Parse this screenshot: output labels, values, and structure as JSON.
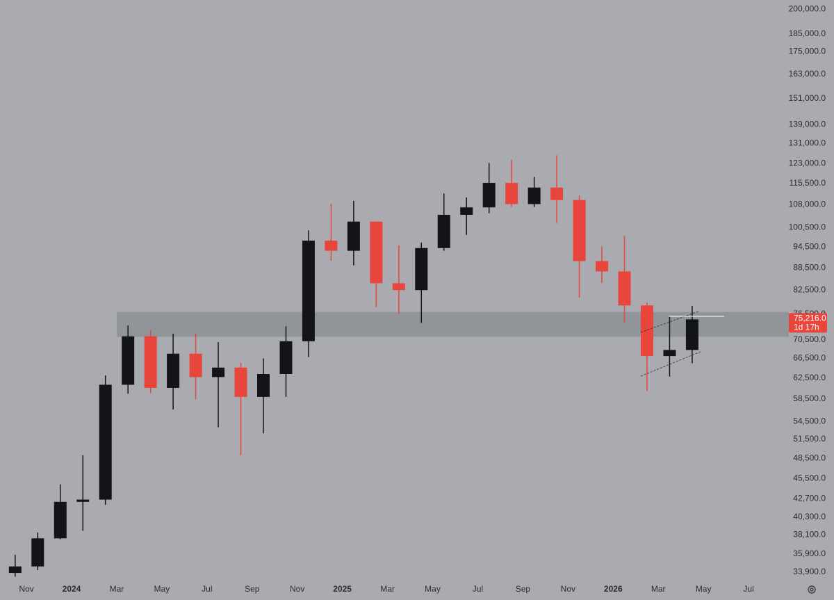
{
  "chart_data": {
    "type": "candlestick",
    "log_scale": true,
    "background": "#a9abb1",
    "up_color": "#131417",
    "down_color": "#e8453c",
    "x": [
      "2023-10",
      "2023-11",
      "2023-12",
      "2024-01",
      "2024-02",
      "2024-03",
      "2024-04",
      "2024-05",
      "2024-06",
      "2024-07",
      "2024-08",
      "2024-09",
      "2024-10",
      "2024-11",
      "2024-12",
      "2025-01",
      "2025-02",
      "2025-03",
      "2025-04",
      "2025-05",
      "2025-06",
      "2025-07",
      "2025-08",
      "2025-09",
      "2025-10",
      "2025-11",
      "2025-12",
      "2026-01",
      "2026-02",
      "2026-03",
      "2026-04"
    ],
    "open": [
      33800,
      34500,
      37700,
      42300,
      42600,
      61200,
      71300,
      60600,
      67500,
      62700,
      64600,
      58900,
      63300,
      70200,
      96400,
      93400,
      102400,
      84300,
      82500,
      94200,
      104600,
      107100,
      115700,
      108200,
      114000,
      109600,
      90400,
      87500,
      78600,
      67000,
      68300
    ],
    "high": [
      35800,
      38400,
      44700,
      49000,
      63000,
      73800,
      72700,
      71900,
      71900,
      70000,
      65600,
      66500,
      73600,
      99600,
      108300,
      109300,
      102500,
      95000,
      95800,
      111900,
      110500,
      123200,
      124400,
      117900,
      126200,
      111200,
      94600,
      97900,
      79300,
      76000,
      78500
    ],
    "low": [
      33400,
      34100,
      37600,
      38600,
      41900,
      59500,
      59600,
      56600,
      58500,
      53500,
      49000,
      52500,
      58900,
      66800,
      90500,
      89200,
      78200,
      76600,
      74400,
      93400,
      98200,
      105100,
      107300,
      107200,
      102000,
      80500,
      84400,
      74500,
      60000,
      62800,
      65500
    ],
    "close": [
      34500,
      37700,
      42300,
      42600,
      61200,
      71300,
      60600,
      67500,
      62700,
      64600,
      58900,
      63300,
      70200,
      96400,
      93400,
      102400,
      84300,
      82500,
      94200,
      104600,
      107100,
      115700,
      108200,
      114000,
      109600,
      90400,
      87500,
      78600,
      67000,
      68300,
      75216
    ],
    "ylim": [
      33000,
      206000
    ],
    "yticks": [
      {
        "value": 200000,
        "label": "200,000.0"
      },
      {
        "value": 185000,
        "label": "185,000.0"
      },
      {
        "value": 175000,
        "label": "175,000.0"
      },
      {
        "value": 163000,
        "label": "163,000.0"
      },
      {
        "value": 151000,
        "label": "151,000.0"
      },
      {
        "value": 139000,
        "label": "139,000.0"
      },
      {
        "value": 131000,
        "label": "131,000.0"
      },
      {
        "value": 123000,
        "label": "123,000.0"
      },
      {
        "value": 115500,
        "label": "115,500.0"
      },
      {
        "value": 108000,
        "label": "108,000.0"
      },
      {
        "value": 100500,
        "label": "100,500.0"
      },
      {
        "value": 94500,
        "label": "94,500.0"
      },
      {
        "value": 88500,
        "label": "88,500.0"
      },
      {
        "value": 82500,
        "label": "82,500.0"
      },
      {
        "value": 76500,
        "label": "76,500.0"
      },
      {
        "value": 70500,
        "label": "70,500.0"
      },
      {
        "value": 66500,
        "label": "66,500.0"
      },
      {
        "value": 62500,
        "label": "62,500.0"
      },
      {
        "value": 58500,
        "label": "58,500.0"
      },
      {
        "value": 54500,
        "label": "54,500.0"
      },
      {
        "value": 51500,
        "label": "51,500.0"
      },
      {
        "value": 48500,
        "label": "48,500.0"
      },
      {
        "value": 45500,
        "label": "45,500.0"
      },
      {
        "value": 42700,
        "label": "42,700.0"
      },
      {
        "value": 40300,
        "label": "40,300.0"
      },
      {
        "value": 38100,
        "label": "38,100.0"
      },
      {
        "value": 35900,
        "label": "35,900.0"
      },
      {
        "value": 33900,
        "label": "33,900.0"
      }
    ],
    "xticks": [
      {
        "value": "2023-11",
        "label": "Nov"
      },
      {
        "value": "2024-01",
        "label": "2024"
      },
      {
        "value": "2024-03",
        "label": "Mar"
      },
      {
        "value": "2024-05",
        "label": "May"
      },
      {
        "value": "2024-07",
        "label": "Jul"
      },
      {
        "value": "2024-09",
        "label": "Sep"
      },
      {
        "value": "2024-11",
        "label": "Nov"
      },
      {
        "value": "2025-01",
        "label": "2025"
      },
      {
        "value": "2025-03",
        "label": "Mar"
      },
      {
        "value": "2025-05",
        "label": "May"
      },
      {
        "value": "2025-07",
        "label": "Jul"
      },
      {
        "value": "2025-09",
        "label": "Sep"
      },
      {
        "value": "2025-11",
        "label": "Nov"
      },
      {
        "value": "2026-01",
        "label": "2026"
      },
      {
        "value": "2026-03",
        "label": "Mar"
      },
      {
        "value": "2026-05",
        "label": "May"
      },
      {
        "value": "2026-07",
        "label": "Jul"
      }
    ],
    "zone": {
      "from": "2024-03",
      "top": 77000,
      "bottom": 71200,
      "color": "#8d8f95"
    },
    "last_price": {
      "value": 75216,
      "label": "75,216.0",
      "color": "#e8453c"
    },
    "countdown": "1d 17h"
  }
}
